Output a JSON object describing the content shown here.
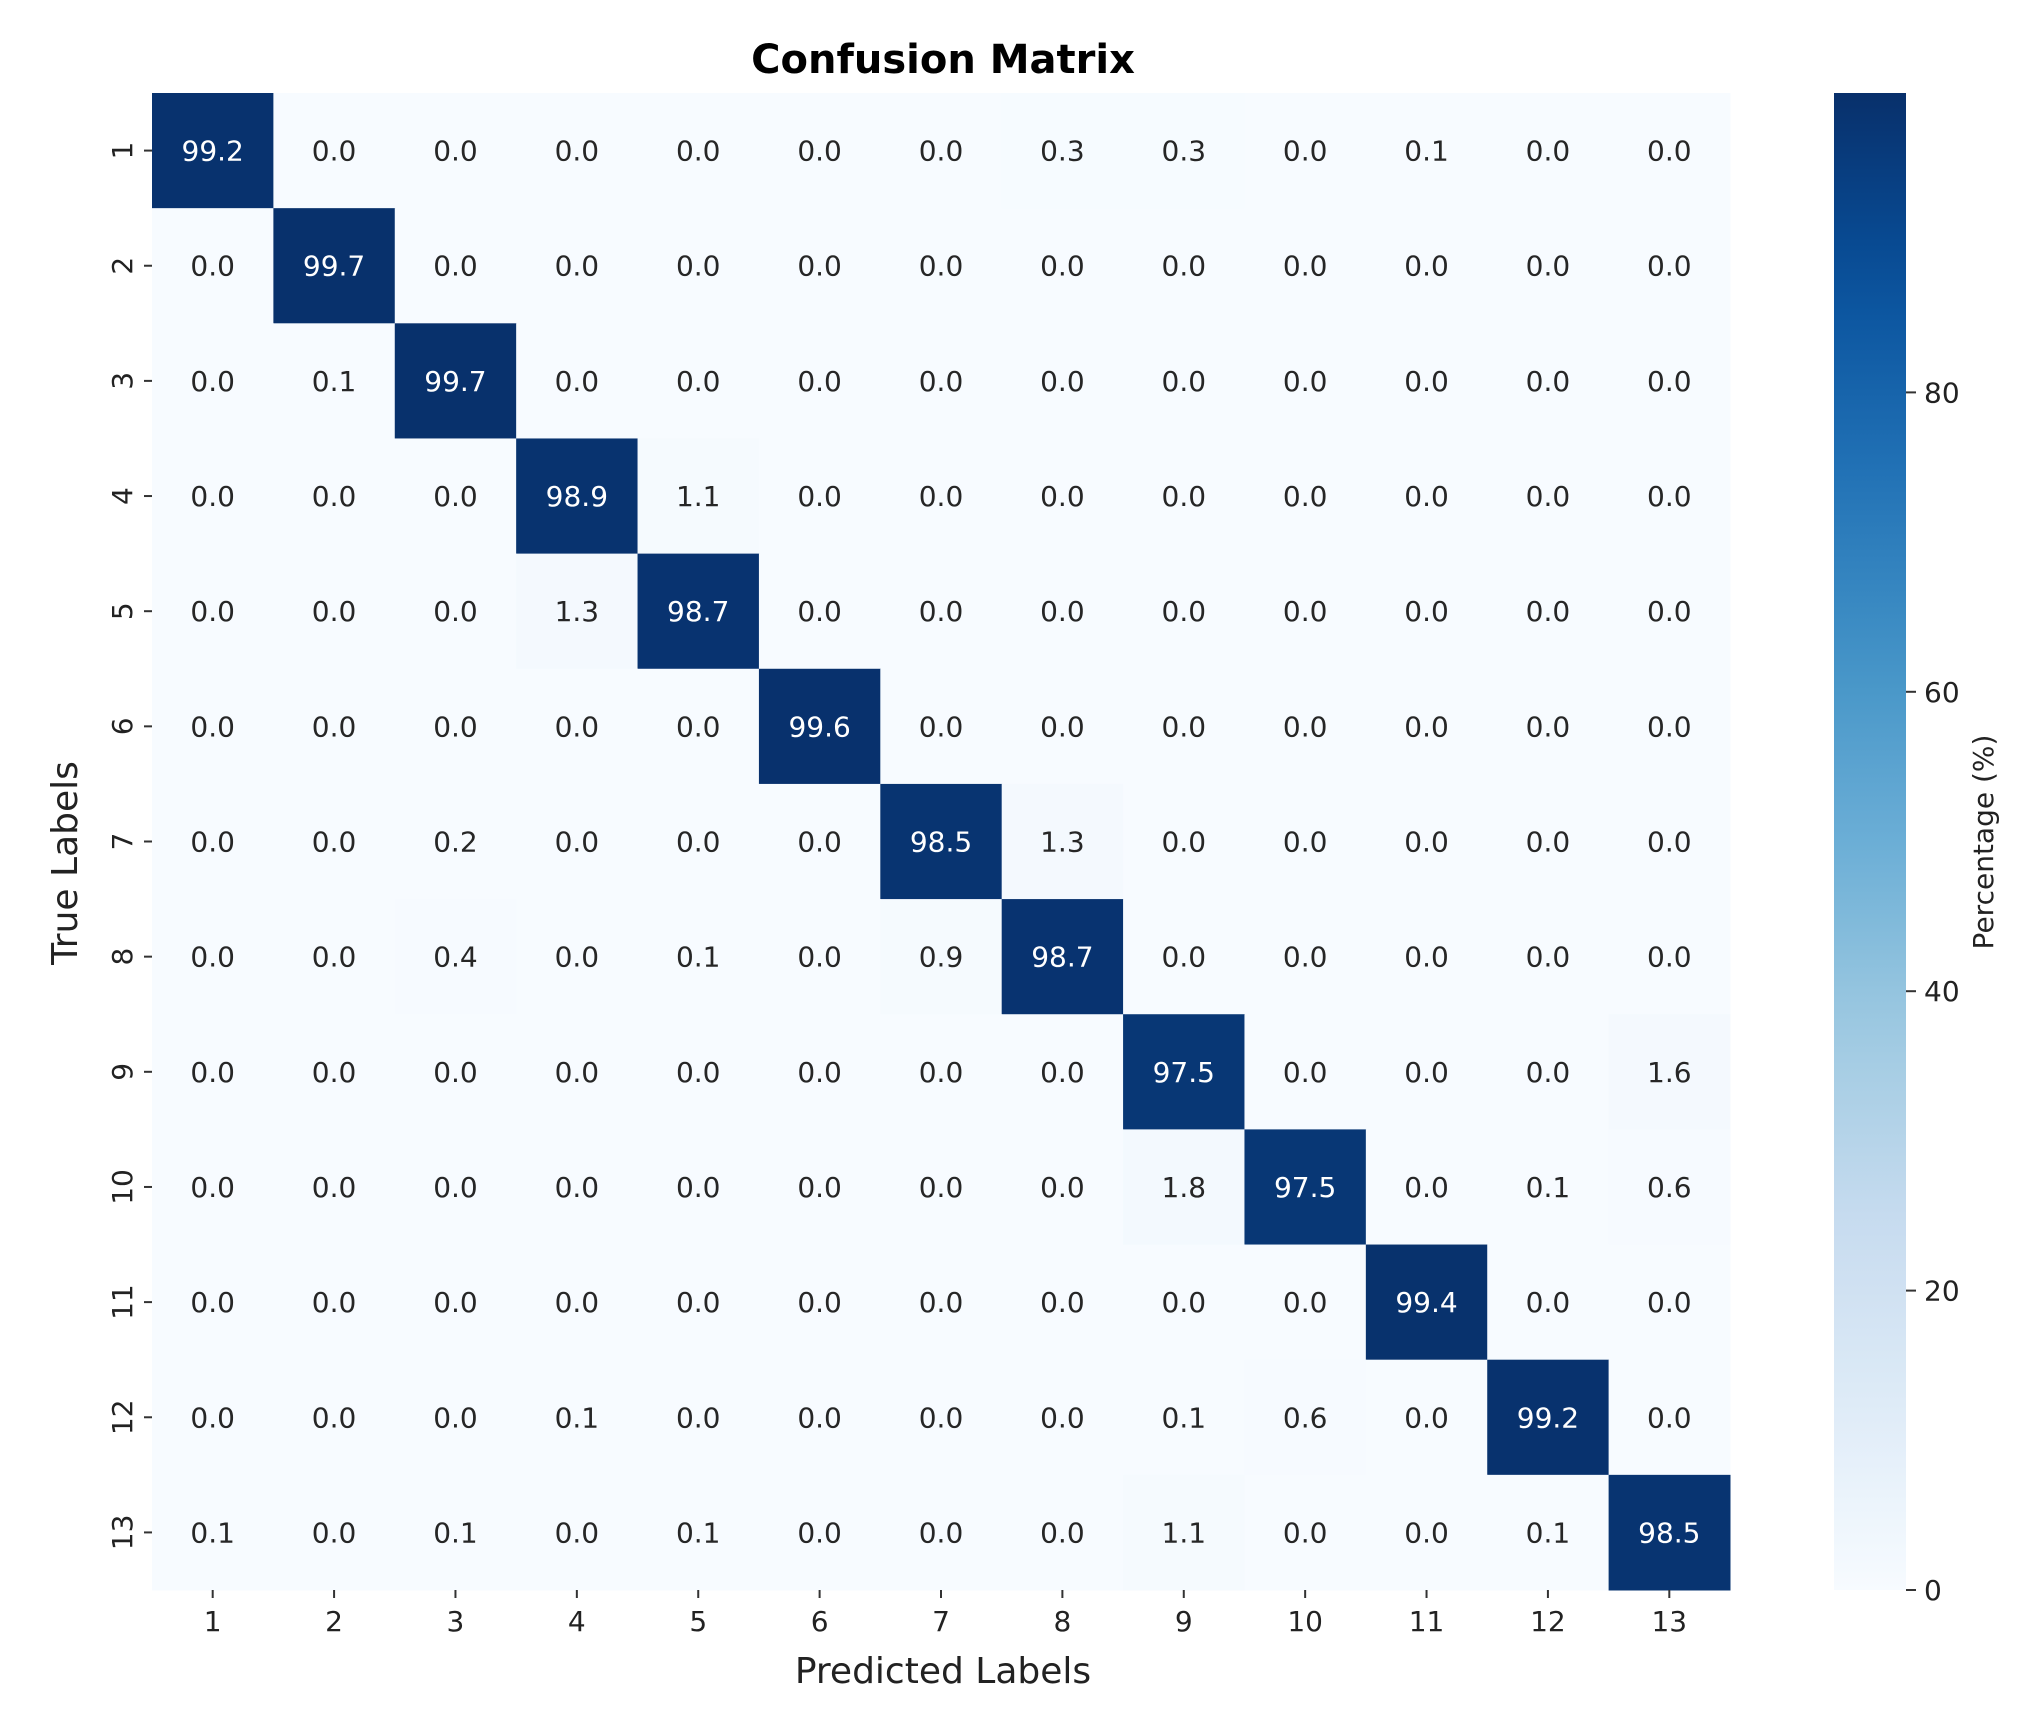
{
  "chart_data": {
    "type": "heatmap",
    "title": "Confusion Matrix",
    "xlabel": "Predicted Labels",
    "ylabel": "True Labels",
    "x_categories": [
      "1",
      "2",
      "3",
      "4",
      "5",
      "6",
      "7",
      "8",
      "9",
      "10",
      "11",
      "12",
      "13"
    ],
    "y_categories": [
      "1",
      "2",
      "3",
      "4",
      "5",
      "6",
      "7",
      "8",
      "9",
      "10",
      "11",
      "12",
      "13"
    ],
    "values": [
      [
        99.2,
        0.0,
        0.0,
        0.0,
        0.0,
        0.0,
        0.0,
        0.3,
        0.3,
        0.0,
        0.1,
        0.0,
        0.0
      ],
      [
        0.0,
        99.7,
        0.0,
        0.0,
        0.0,
        0.0,
        0.0,
        0.0,
        0.0,
        0.0,
        0.0,
        0.0,
        0.0
      ],
      [
        0.0,
        0.1,
        99.7,
        0.0,
        0.0,
        0.0,
        0.0,
        0.0,
        0.0,
        0.0,
        0.0,
        0.0,
        0.0
      ],
      [
        0.0,
        0.0,
        0.0,
        98.9,
        1.1,
        0.0,
        0.0,
        0.0,
        0.0,
        0.0,
        0.0,
        0.0,
        0.0
      ],
      [
        0.0,
        0.0,
        0.0,
        1.3,
        98.7,
        0.0,
        0.0,
        0.0,
        0.0,
        0.0,
        0.0,
        0.0,
        0.0
      ],
      [
        0.0,
        0.0,
        0.0,
        0.0,
        0.0,
        99.6,
        0.0,
        0.0,
        0.0,
        0.0,
        0.0,
        0.0,
        0.0
      ],
      [
        0.0,
        0.0,
        0.2,
        0.0,
        0.0,
        0.0,
        98.5,
        1.3,
        0.0,
        0.0,
        0.0,
        0.0,
        0.0
      ],
      [
        0.0,
        0.0,
        0.4,
        0.0,
        0.1,
        0.0,
        0.9,
        98.7,
        0.0,
        0.0,
        0.0,
        0.0,
        0.0
      ],
      [
        0.0,
        0.0,
        0.0,
        0.0,
        0.0,
        0.0,
        0.0,
        0.0,
        97.5,
        0.0,
        0.0,
        0.0,
        1.6
      ],
      [
        0.0,
        0.0,
        0.0,
        0.0,
        0.0,
        0.0,
        0.0,
        0.0,
        1.8,
        97.5,
        0.0,
        0.1,
        0.6
      ],
      [
        0.0,
        0.0,
        0.0,
        0.0,
        0.0,
        0.0,
        0.0,
        0.0,
        0.0,
        0.0,
        99.4,
        0.0,
        0.0
      ],
      [
        0.0,
        0.0,
        0.0,
        0.1,
        0.0,
        0.0,
        0.0,
        0.0,
        0.1,
        0.6,
        0.0,
        99.2,
        0.0
      ],
      [
        0.1,
        0.0,
        0.1,
        0.0,
        0.1,
        0.0,
        0.0,
        0.0,
        1.1,
        0.0,
        0.0,
        0.1,
        98.5
      ]
    ],
    "colorbar": {
      "label": "Percentage (%)",
      "range": [
        0,
        100
      ],
      "ticks": [
        0,
        20,
        40,
        60,
        80
      ],
      "colormap": "Blues"
    },
    "grid": false,
    "legend": "colorbar-right"
  }
}
